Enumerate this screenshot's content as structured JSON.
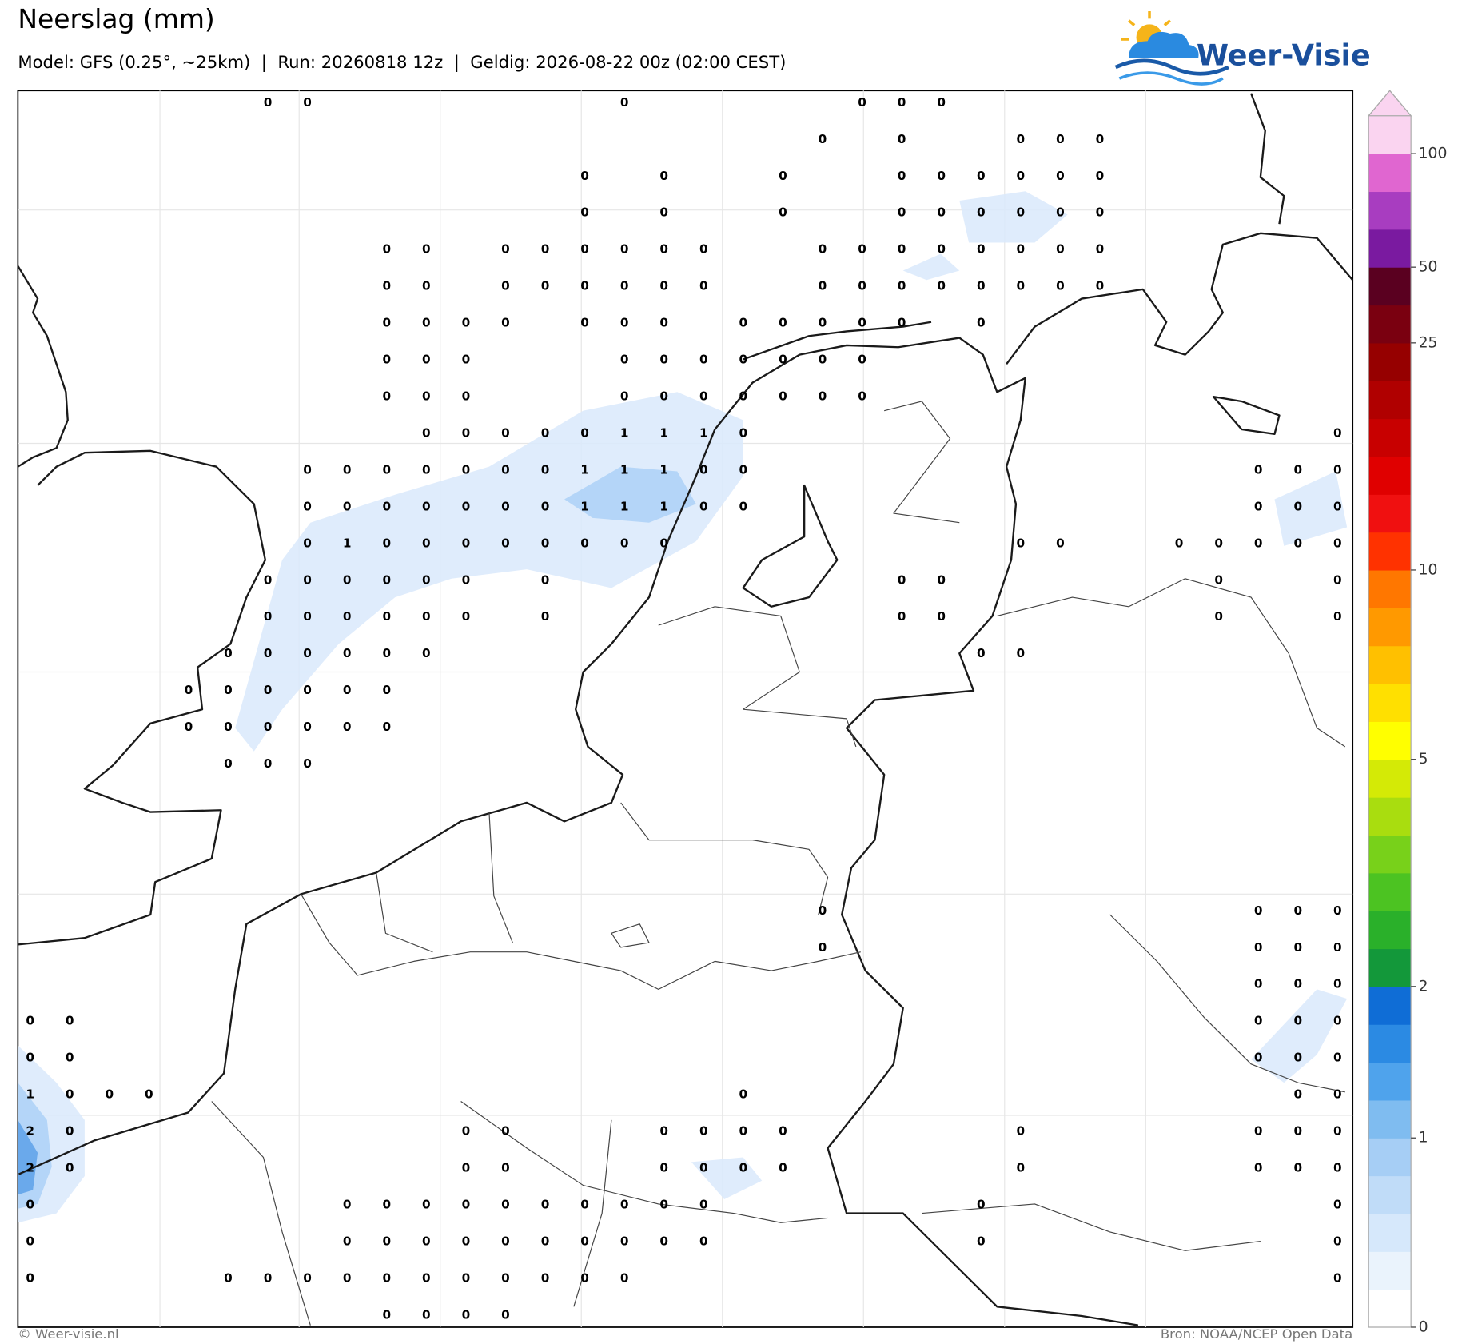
{
  "header": {
    "title": "Neerslag (mm)",
    "subtitle": "Model: GFS (0.25°, ~25km)  |  Run: 20260818 12z  |  Geldig: 2026-08-22 00z (02:00 CEST)"
  },
  "logo": {
    "text": "Weer-Visie"
  },
  "map": {
    "grid_values": [
      [
        null,
        null,
        null,
        null,
        null,
        null,
        0,
        0,
        null,
        null,
        null,
        null,
        null,
        null,
        null,
        0,
        null,
        null,
        null,
        null,
        null,
        0,
        0,
        0,
        null,
        null,
        null,
        null,
        null,
        null,
        null,
        null,
        null,
        null
      ],
      [
        null,
        null,
        null,
        null,
        null,
        null,
        null,
        null,
        null,
        null,
        null,
        null,
        null,
        null,
        null,
        null,
        null,
        null,
        null,
        null,
        0,
        null,
        0,
        null,
        null,
        0,
        0,
        0,
        null,
        null,
        null,
        null,
        null,
        null
      ],
      [
        null,
        null,
        null,
        null,
        null,
        null,
        null,
        null,
        null,
        null,
        null,
        null,
        null,
        null,
        0,
        null,
        0,
        null,
        null,
        0,
        null,
        null,
        0,
        0,
        0,
        0,
        0,
        0,
        null,
        null,
        null,
        null,
        null,
        null
      ],
      [
        null,
        null,
        null,
        null,
        null,
        null,
        null,
        null,
        null,
        null,
        null,
        null,
        null,
        null,
        0,
        null,
        0,
        null,
        null,
        0,
        null,
        null,
        0,
        0,
        0,
        0,
        0,
        0,
        null,
        null,
        null,
        null,
        null,
        null
      ],
      [
        null,
        null,
        null,
        null,
        null,
        null,
        null,
        null,
        null,
        0,
        0,
        null,
        0,
        0,
        0,
        0,
        0,
        0,
        null,
        null,
        0,
        0,
        0,
        0,
        0,
        0,
        0,
        0,
        null,
        null,
        null,
        null,
        null,
        null
      ],
      [
        null,
        null,
        null,
        null,
        null,
        null,
        null,
        null,
        null,
        0,
        0,
        null,
        0,
        0,
        0,
        0,
        0,
        0,
        null,
        null,
        0,
        0,
        0,
        0,
        0,
        0,
        0,
        0,
        null,
        null,
        null,
        null,
        null,
        null
      ],
      [
        null,
        null,
        null,
        null,
        null,
        null,
        null,
        null,
        null,
        0,
        0,
        0,
        0,
        null,
        0,
        0,
        0,
        null,
        0,
        0,
        0,
        0,
        0,
        null,
        0,
        null,
        null,
        null,
        null,
        null,
        null,
        null,
        null,
        null
      ],
      [
        null,
        null,
        null,
        null,
        null,
        null,
        null,
        null,
        null,
        0,
        0,
        0,
        null,
        null,
        null,
        0,
        0,
        0,
        0,
        0,
        0,
        0,
        null,
        null,
        null,
        null,
        null,
        null,
        null,
        null,
        null,
        null,
        null,
        null
      ],
      [
        null,
        null,
        null,
        null,
        null,
        null,
        null,
        null,
        null,
        0,
        0,
        0,
        null,
        null,
        null,
        0,
        0,
        0,
        0,
        0,
        0,
        0,
        null,
        null,
        null,
        null,
        null,
        null,
        null,
        null,
        null,
        null,
        null,
        null
      ],
      [
        null,
        null,
        null,
        null,
        null,
        null,
        null,
        null,
        null,
        null,
        0,
        0,
        0,
        0,
        0,
        1,
        1,
        1,
        0,
        null,
        null,
        null,
        null,
        null,
        null,
        null,
        null,
        null,
        null,
        null,
        null,
        null,
        null,
        0
      ],
      [
        null,
        null,
        null,
        null,
        null,
        null,
        null,
        0,
        0,
        0,
        0,
        0,
        0,
        0,
        1,
        1,
        1,
        0,
        0,
        null,
        null,
        null,
        null,
        null,
        null,
        null,
        null,
        null,
        null,
        null,
        null,
        0,
        0,
        0
      ],
      [
        null,
        null,
        null,
        null,
        null,
        null,
        null,
        0,
        0,
        0,
        0,
        0,
        0,
        0,
        1,
        1,
        1,
        0,
        0,
        null,
        null,
        null,
        null,
        null,
        null,
        null,
        null,
        null,
        null,
        null,
        null,
        0,
        0,
        0
      ],
      [
        null,
        null,
        null,
        null,
        null,
        null,
        null,
        0,
        1,
        0,
        0,
        0,
        0,
        0,
        0,
        0,
        0,
        null,
        null,
        null,
        null,
        null,
        null,
        null,
        null,
        0,
        0,
        null,
        null,
        0,
        0,
        0,
        0,
        0
      ],
      [
        null,
        null,
        null,
        null,
        null,
        null,
        0,
        0,
        0,
        0,
        0,
        0,
        null,
        0,
        null,
        null,
        null,
        null,
        null,
        null,
        null,
        null,
        0,
        0,
        null,
        null,
        null,
        null,
        null,
        null,
        0,
        null,
        null,
        0
      ],
      [
        null,
        null,
        null,
        null,
        null,
        null,
        0,
        0,
        0,
        0,
        0,
        0,
        null,
        0,
        null,
        null,
        null,
        null,
        null,
        null,
        null,
        null,
        0,
        0,
        null,
        null,
        null,
        null,
        null,
        null,
        0,
        null,
        null,
        0
      ],
      [
        null,
        null,
        null,
        null,
        null,
        0,
        0,
        0,
        0,
        0,
        0,
        null,
        null,
        null,
        null,
        null,
        null,
        null,
        null,
        null,
        null,
        null,
        null,
        null,
        0,
        0,
        null,
        null,
        null,
        null,
        null,
        null,
        null,
        null
      ],
      [
        null,
        null,
        null,
        null,
        0,
        0,
        0,
        0,
        0,
        0,
        null,
        null,
        null,
        null,
        null,
        null,
        null,
        null,
        null,
        null,
        null,
        null,
        null,
        null,
        null,
        null,
        null,
        null,
        null,
        null,
        null,
        null,
        null,
        null
      ],
      [
        null,
        null,
        null,
        null,
        0,
        0,
        0,
        0,
        0,
        0,
        null,
        null,
        null,
        null,
        null,
        null,
        null,
        null,
        null,
        null,
        null,
        null,
        null,
        null,
        null,
        null,
        null,
        null,
        null,
        null,
        null,
        null,
        null,
        null
      ],
      [
        null,
        null,
        null,
        null,
        null,
        0,
        0,
        0,
        null,
        null,
        null,
        null,
        null,
        null,
        null,
        null,
        null,
        null,
        null,
        null,
        null,
        null,
        null,
        null,
        null,
        null,
        null,
        null,
        null,
        null,
        null,
        null,
        null,
        null
      ],
      [
        null,
        null,
        null,
        null,
        null,
        null,
        null,
        null,
        null,
        null,
        null,
        null,
        null,
        null,
        null,
        null,
        null,
        null,
        null,
        null,
        null,
        null,
        null,
        null,
        null,
        null,
        null,
        null,
        null,
        null,
        null,
        null,
        null,
        null
      ],
      [
        null,
        null,
        null,
        null,
        null,
        null,
        null,
        null,
        null,
        null,
        null,
        null,
        null,
        null,
        null,
        null,
        null,
        null,
        null,
        null,
        null,
        null,
        null,
        null,
        null,
        null,
        null,
        null,
        null,
        null,
        null,
        null,
        null,
        null
      ],
      [
        null,
        null,
        null,
        null,
        null,
        null,
        null,
        null,
        null,
        null,
        null,
        null,
        null,
        null,
        null,
        null,
        null,
        null,
        null,
        null,
        null,
        null,
        null,
        null,
        null,
        null,
        null,
        null,
        null,
        null,
        null,
        null,
        null,
        null
      ],
      [
        null,
        null,
        null,
        null,
        null,
        null,
        null,
        null,
        null,
        null,
        null,
        null,
        null,
        null,
        null,
        null,
        null,
        null,
        null,
        null,
        0,
        null,
        null,
        null,
        null,
        null,
        null,
        null,
        null,
        null,
        null,
        0,
        0,
        0
      ],
      [
        null,
        null,
        null,
        null,
        null,
        null,
        null,
        null,
        null,
        null,
        null,
        null,
        null,
        null,
        null,
        null,
        null,
        null,
        null,
        null,
        0,
        null,
        null,
        null,
        null,
        null,
        null,
        null,
        null,
        null,
        null,
        0,
        0,
        0
      ],
      [
        null,
        null,
        null,
        null,
        null,
        null,
        null,
        null,
        null,
        null,
        null,
        null,
        null,
        null,
        null,
        null,
        null,
        null,
        null,
        null,
        null,
        null,
        null,
        null,
        null,
        null,
        null,
        null,
        null,
        null,
        null,
        0,
        0,
        0
      ],
      [
        0,
        0,
        null,
        null,
        null,
        null,
        null,
        null,
        null,
        null,
        null,
        null,
        null,
        null,
        null,
        null,
        null,
        null,
        null,
        null,
        null,
        null,
        null,
        null,
        null,
        null,
        null,
        null,
        null,
        null,
        null,
        0,
        0,
        0
      ],
      [
        0,
        0,
        null,
        null,
        null,
        null,
        null,
        null,
        null,
        null,
        null,
        null,
        null,
        null,
        null,
        null,
        null,
        null,
        null,
        null,
        null,
        null,
        null,
        null,
        null,
        null,
        null,
        null,
        null,
        null,
        null,
        0,
        0,
        0
      ],
      [
        1,
        0,
        0,
        0,
        null,
        null,
        null,
        null,
        null,
        null,
        null,
        null,
        null,
        null,
        null,
        null,
        null,
        null,
        0,
        null,
        null,
        null,
        null,
        null,
        null,
        null,
        null,
        null,
        null,
        null,
        null,
        null,
        0,
        0
      ],
      [
        2,
        0,
        null,
        null,
        null,
        null,
        null,
        null,
        null,
        null,
        null,
        0,
        0,
        null,
        null,
        null,
        0,
        0,
        0,
        0,
        null,
        null,
        null,
        null,
        null,
        0,
        null,
        null,
        null,
        null,
        null,
        0,
        0,
        0
      ],
      [
        2,
        0,
        null,
        null,
        null,
        null,
        null,
        null,
        null,
        null,
        null,
        0,
        0,
        null,
        null,
        null,
        0,
        0,
        0,
        0,
        null,
        null,
        null,
        null,
        null,
        0,
        null,
        null,
        null,
        null,
        null,
        0,
        0,
        0
      ],
      [
        0,
        null,
        null,
        null,
        null,
        null,
        null,
        null,
        0,
        0,
        0,
        0,
        0,
        0,
        0,
        0,
        0,
        0,
        null,
        null,
        null,
        null,
        null,
        null,
        0,
        null,
        null,
        null,
        null,
        null,
        null,
        null,
        null,
        0
      ],
      [
        0,
        null,
        null,
        null,
        null,
        null,
        null,
        null,
        0,
        0,
        0,
        0,
        0,
        0,
        0,
        0,
        0,
        0,
        null,
        null,
        null,
        null,
        null,
        null,
        0,
        null,
        null,
        null,
        null,
        null,
        null,
        null,
        null,
        0
      ],
      [
        0,
        null,
        null,
        null,
        null,
        0,
        0,
        0,
        0,
        0,
        0,
        0,
        0,
        0,
        0,
        0,
        null,
        null,
        null,
        null,
        null,
        null,
        null,
        null,
        null,
        null,
        null,
        null,
        null,
        null,
        null,
        null,
        null,
        0
      ],
      [
        null,
        null,
        null,
        null,
        null,
        null,
        null,
        null,
        null,
        0,
        0,
        0,
        0,
        null,
        null,
        null,
        null,
        null,
        null,
        null,
        null,
        null,
        null,
        null,
        null,
        null,
        null,
        null,
        null,
        null,
        null,
        null,
        null,
        null
      ]
    ]
  },
  "colorbar": {
    "levels": [
      0,
      0.2,
      0.4,
      0.6,
      0.8,
      1,
      1.25,
      1.5,
      1.75,
      2,
      2.5,
      3,
      3.5,
      4,
      4.5,
      5,
      6,
      7,
      8,
      9,
      10,
      12.5,
      15,
      17.5,
      20,
      22.5,
      25,
      37.5,
      50,
      66,
      83,
      100,
      125
    ],
    "colors": [
      "#ffffff",
      "#eaf3fc",
      "#d6e8fb",
      "#c0dcf8",
      "#a6cef5",
      "#7fbcf0",
      "#4fa3ec",
      "#2b8ae3",
      "#0f6dd6",
      "#13983a",
      "#2ab02a",
      "#4cc322",
      "#78d11a",
      "#a9dd0f",
      "#d4ea06",
      "#ffff00",
      "#ffe000",
      "#ffc000",
      "#ff9900",
      "#ff7700",
      "#ff3200",
      "#f01010",
      "#e00000",
      "#c80000",
      "#b00000",
      "#960000",
      "#7a0010",
      "#5a0020",
      "#7a1aa0",
      "#a83dc0",
      "#e066d0",
      "#fad4f0"
    ],
    "ticks": [
      0,
      1,
      2,
      5,
      10,
      25,
      50,
      100
    ]
  },
  "footer": {
    "left": "© Weer-visie.nl",
    "right": "Bron: NOAA/NCEP Open Data"
  }
}
